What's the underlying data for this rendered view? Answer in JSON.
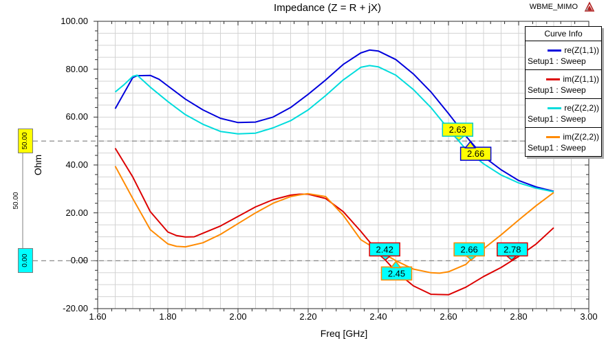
{
  "header": {
    "project": "WBME_MIMO",
    "logo": "ansys-triangle-logo"
  },
  "legend": {
    "header": "Curve Info"
  },
  "chart_data": {
    "type": "line",
    "title": "Impedance (Z = R + jX)",
    "xlabel": "Freq [GHz]",
    "ylabel": "Ohm",
    "xlim": [
      1.6,
      3.0
    ],
    "ylim": [
      -20,
      100
    ],
    "x_tick_labels": [
      "1.60",
      "1.80",
      "2.00",
      "2.20",
      "2.40",
      "2.60",
      "2.80",
      "3.00"
    ],
    "y_tick_labels": [
      "100.00",
      "80.00",
      "60.00",
      "40.00",
      "20.00",
      "0.00",
      "-20.00"
    ],
    "grid": true,
    "grid_color": "#d3d3d3",
    "legend_position": "top-right",
    "series": [
      {
        "name": "re(Z(1,1))",
        "setup": "Setup1 : Sweep",
        "color": "#0000dc",
        "points": [
          [
            1.65,
            63.5
          ],
          [
            1.7,
            76.5
          ],
          [
            1.7125,
            77.3
          ],
          [
            1.75,
            77.4
          ],
          [
            1.775,
            75.8
          ],
          [
            1.8,
            73
          ],
          [
            1.85,
            67.5
          ],
          [
            1.9,
            63
          ],
          [
            1.95,
            59.5
          ],
          [
            2.0,
            57.7
          ],
          [
            2.05,
            57.9
          ],
          [
            2.1,
            60
          ],
          [
            2.15,
            64
          ],
          [
            2.2,
            69.5
          ],
          [
            2.25,
            75.5
          ],
          [
            2.3,
            82
          ],
          [
            2.35,
            86.8
          ],
          [
            2.375,
            88
          ],
          [
            2.4,
            87.6
          ],
          [
            2.45,
            84
          ],
          [
            2.5,
            78
          ],
          [
            2.55,
            70.5
          ],
          [
            2.6,
            61.5
          ],
          [
            2.65,
            52
          ],
          [
            2.7,
            43.5
          ],
          [
            2.75,
            38
          ],
          [
            2.8,
            33.5
          ],
          [
            2.85,
            30.8
          ],
          [
            2.9,
            29
          ]
        ]
      },
      {
        "name": "im(Z(1,1))",
        "setup": "Setup1 : Sweep",
        "color": "#dc0000",
        "points": [
          [
            1.65,
            47
          ],
          [
            1.7,
            35
          ],
          [
            1.75,
            20.5
          ],
          [
            1.8,
            12
          ],
          [
            1.825,
            10.5
          ],
          [
            1.85,
            9.9
          ],
          [
            1.875,
            10
          ],
          [
            1.9,
            11.5
          ],
          [
            1.95,
            14.5
          ],
          [
            2.0,
            18.5
          ],
          [
            2.05,
            22.5
          ],
          [
            2.1,
            25.5
          ],
          [
            2.15,
            27.4
          ],
          [
            2.175,
            27.8
          ],
          [
            2.2,
            27.8
          ],
          [
            2.25,
            26
          ],
          [
            2.3,
            20.5
          ],
          [
            2.35,
            12.3
          ],
          [
            2.4,
            3.5
          ],
          [
            2.45,
            -4.5
          ],
          [
            2.5,
            -10.5
          ],
          [
            2.55,
            -14
          ],
          [
            2.6,
            -14.2
          ],
          [
            2.65,
            -11
          ],
          [
            2.7,
            -6.6
          ],
          [
            2.75,
            -2.8
          ],
          [
            2.8,
            1.8
          ],
          [
            2.85,
            7
          ],
          [
            2.9,
            13.8
          ]
        ]
      },
      {
        "name": "re(Z(2,2))",
        "setup": "Setup1 : Sweep",
        "color": "#00dcdc",
        "points": [
          [
            1.65,
            70.5
          ],
          [
            1.675,
            73.5
          ],
          [
            1.7,
            77
          ],
          [
            1.7125,
            77.5
          ],
          [
            1.75,
            72.5
          ],
          [
            1.8,
            66.5
          ],
          [
            1.85,
            61
          ],
          [
            1.9,
            57
          ],
          [
            1.95,
            54
          ],
          [
            2.0,
            53
          ],
          [
            2.05,
            53.3
          ],
          [
            2.1,
            55.5
          ],
          [
            2.15,
            58.5
          ],
          [
            2.2,
            63
          ],
          [
            2.25,
            69
          ],
          [
            2.3,
            75.5
          ],
          [
            2.35,
            80.8
          ],
          [
            2.375,
            81.5
          ],
          [
            2.4,
            81
          ],
          [
            2.45,
            77.5
          ],
          [
            2.5,
            71.5
          ],
          [
            2.55,
            64
          ],
          [
            2.6,
            55
          ],
          [
            2.65,
            46.5
          ],
          [
            2.7,
            40.5
          ],
          [
            2.75,
            35.8
          ],
          [
            2.8,
            32.5
          ],
          [
            2.85,
            30.3
          ],
          [
            2.9,
            28.8
          ]
        ]
      },
      {
        "name": "im(Z(2,2))",
        "setup": "Setup1 : Sweep",
        "color": "#ff8a00",
        "points": [
          [
            1.65,
            39.5
          ],
          [
            1.7,
            26
          ],
          [
            1.75,
            13
          ],
          [
            1.8,
            7
          ],
          [
            1.825,
            6
          ],
          [
            1.85,
            5.8
          ],
          [
            1.9,
            7.5
          ],
          [
            1.95,
            11
          ],
          [
            2.0,
            15.5
          ],
          [
            2.05,
            20
          ],
          [
            2.1,
            24
          ],
          [
            2.15,
            26.8
          ],
          [
            2.175,
            27.5
          ],
          [
            2.2,
            28
          ],
          [
            2.25,
            26.8
          ],
          [
            2.3,
            19
          ],
          [
            2.35,
            8.8
          ],
          [
            2.4,
            4.3
          ],
          [
            2.45,
            0
          ],
          [
            2.5,
            -3.5
          ],
          [
            2.55,
            -5
          ],
          [
            2.575,
            -5.2
          ],
          [
            2.6,
            -4.6
          ],
          [
            2.65,
            -1.5
          ],
          [
            2.66,
            0
          ],
          [
            2.7,
            5
          ],
          [
            2.75,
            10.8
          ],
          [
            2.8,
            17
          ],
          [
            2.85,
            23
          ],
          [
            2.9,
            28.5
          ]
        ]
      }
    ],
    "markers": [
      {
        "label": "2.42",
        "freq": 2.42,
        "value": 0,
        "fill": "#00ffff",
        "stroke": "#dc0000",
        "side": "above",
        "dx": -1
      },
      {
        "label": "2.45",
        "freq": 2.45,
        "value": 0,
        "fill": "#00ffff",
        "stroke": "#ff8a00",
        "side": "below",
        "dx": 1
      },
      {
        "label": "2.63",
        "freq": 2.63,
        "value": 50,
        "fill": "#ffff00",
        "stroke": "#00cccc",
        "side": "above",
        "dx": -2
      },
      {
        "label": "2.66",
        "freq": 2.662,
        "value": 50,
        "fill": "#ffff00",
        "stroke": "#0000dc",
        "side": "below",
        "dx": 8
      },
      {
        "label": "2.66",
        "freq": 2.665,
        "value": 0,
        "fill": "#00ffff",
        "stroke": "#ff8a00",
        "side": "above",
        "dx": -3
      },
      {
        "label": "2.78",
        "freq": 2.78,
        "value": 0,
        "fill": "#00ffff",
        "stroke": "#dc0000",
        "side": "above",
        "dx": 1
      }
    ],
    "ref_lines": [
      {
        "value": 50,
        "label": "50.00",
        "box_color": "#ffff00"
      },
      {
        "value": 0,
        "label": "0.00",
        "box_color": "#00ffff"
      }
    ],
    "ref_delta_label": "50.00"
  }
}
